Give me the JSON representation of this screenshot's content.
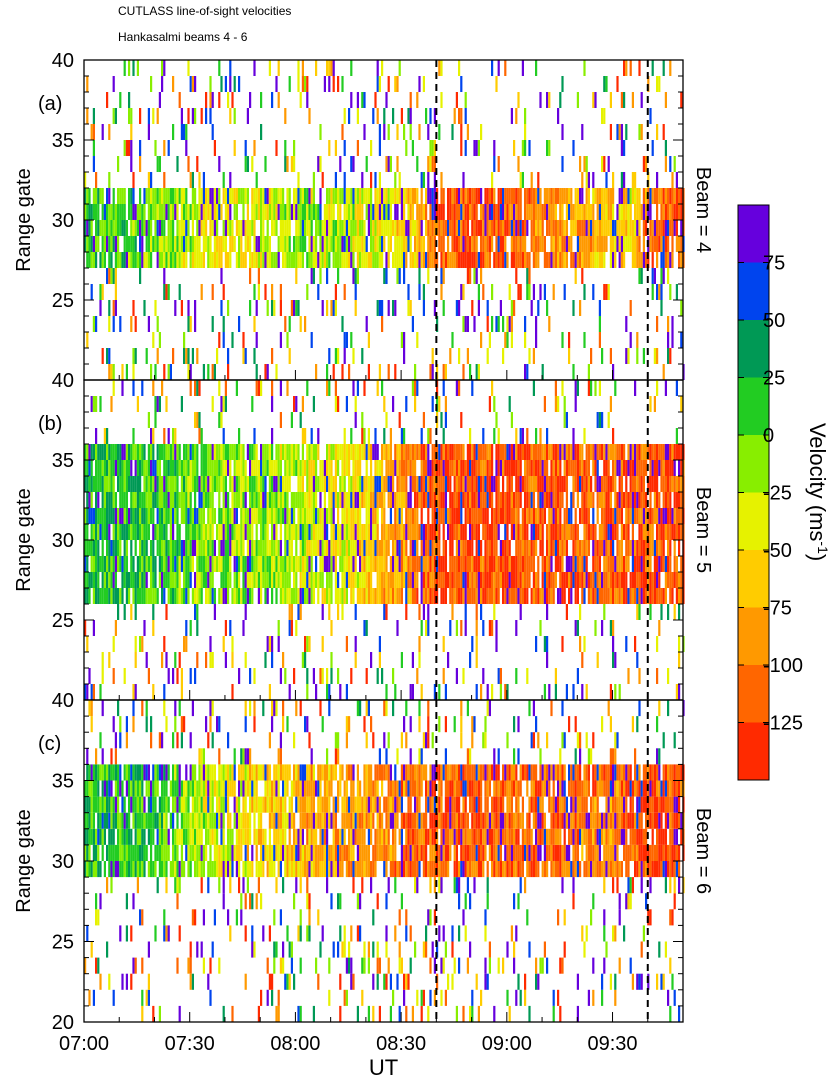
{
  "header": {
    "title": "CUTLASS line-of-sight velocities",
    "subtitle": "Hankasalmi beams 4 - 6"
  },
  "chart_data": {
    "type": "heatmap",
    "x_axis": {
      "label": "UT",
      "range": [
        "07:00",
        "09:50"
      ],
      "ticks": [
        "07:00",
        "07:30",
        "08:00",
        "08:30",
        "09:00",
        "09:30"
      ]
    },
    "event_markers_ut": [
      "08:40",
      "09:40"
    ],
    "colorbar": {
      "label": "Velocity (ms",
      "label_superscript": "-1",
      "label_close": ")",
      "range": [
        -150,
        100
      ],
      "boundaries": [
        -150,
        -125,
        -100,
        -75,
        -50,
        -25,
        0,
        25,
        50,
        75,
        100
      ],
      "ticks": [
        75,
        50,
        25,
        0,
        -25,
        -50,
        -75,
        -100,
        -125
      ],
      "colors": [
        "#ff2a00",
        "#ff6600",
        "#ff9900",
        "#ffcc00",
        "#e6f200",
        "#88ee00",
        "#22cc22",
        "#009955",
        "#0044ee",
        "#6600dd"
      ]
    },
    "panels": [
      {
        "panel_label": "(a)",
        "beam_label": "Beam = 4",
        "ylabel": "Range gate",
        "ylim": [
          20,
          40
        ],
        "yticks": [
          25,
          30,
          35,
          40
        ],
        "band_range_gates": [
          27,
          31.5
        ],
        "velocity_profile": [
          {
            "ut": "07:00",
            "velocity": 10
          },
          {
            "ut": "07:20",
            "velocity": -5
          },
          {
            "ut": "07:40",
            "velocity": -45
          },
          {
            "ut": "08:00",
            "velocity": -20
          },
          {
            "ut": "08:20",
            "velocity": -30
          },
          {
            "ut": "08:35",
            "velocity": -70
          },
          {
            "ut": "08:40",
            "velocity": -120
          },
          {
            "ut": "09:00",
            "velocity": -115
          },
          {
            "ut": "09:20",
            "velocity": -80
          },
          {
            "ut": "09:35",
            "velocity": -50
          },
          {
            "ut": "09:40",
            "velocity": -110
          },
          {
            "ut": "09:50",
            "velocity": -120
          }
        ]
      },
      {
        "panel_label": "(b)",
        "beam_label": "Beam = 5",
        "ylabel": "Range gate",
        "ylim": [
          20,
          40
        ],
        "yticks": [
          25,
          30,
          35,
          40
        ],
        "band_range_gates": [
          26,
          36
        ],
        "velocity_profile": [
          {
            "ut": "07:00",
            "velocity": 20
          },
          {
            "ut": "07:15",
            "velocity": 15
          },
          {
            "ut": "07:35",
            "velocity": -10
          },
          {
            "ut": "07:55",
            "velocity": -20
          },
          {
            "ut": "08:15",
            "velocity": -40
          },
          {
            "ut": "08:30",
            "velocity": -90
          },
          {
            "ut": "08:40",
            "velocity": -125
          },
          {
            "ut": "09:10",
            "velocity": -120
          },
          {
            "ut": "09:30",
            "velocity": -110
          },
          {
            "ut": "09:40",
            "velocity": -120
          },
          {
            "ut": "09:50",
            "velocity": -125
          }
        ]
      },
      {
        "panel_label": "(c)",
        "beam_label": "Beam = 6",
        "ylabel": "Range gate",
        "ylim": [
          20,
          40
        ],
        "yticks": [
          20,
          25,
          30,
          35,
          40
        ],
        "band_range_gates": [
          29,
          36
        ],
        "velocity_profile": [
          {
            "ut": "07:00",
            "velocity": 20
          },
          {
            "ut": "07:20",
            "velocity": 10
          },
          {
            "ut": "07:40",
            "velocity": -40
          },
          {
            "ut": "08:00",
            "velocity": -70
          },
          {
            "ut": "08:20",
            "velocity": -90
          },
          {
            "ut": "08:40",
            "velocity": -115
          },
          {
            "ut": "09:10",
            "velocity": -110
          },
          {
            "ut": "09:30",
            "velocity": -95
          },
          {
            "ut": "09:40",
            "velocity": -125
          },
          {
            "ut": "09:50",
            "velocity": -125
          }
        ]
      }
    ]
  }
}
